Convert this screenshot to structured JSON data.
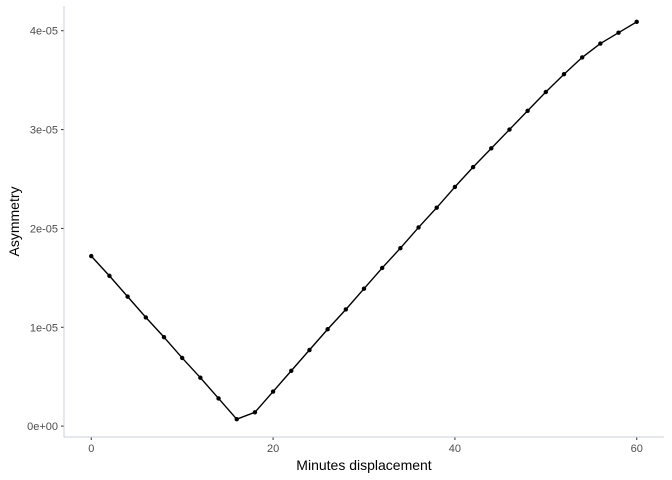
{
  "chart_data": {
    "type": "line",
    "title": "",
    "xlabel": "Minutes displacement",
    "ylabel": "Asymmetry",
    "xlim": [
      -3,
      63
    ],
    "ylim": [
      -1.1e-06,
      4.25e-05
    ],
    "x_ticks": [
      0,
      20,
      40,
      60
    ],
    "x_tick_labels": [
      "0",
      "20",
      "40",
      "60"
    ],
    "y_ticks": [
      0,
      1e-05,
      2e-05,
      3e-05,
      4e-05
    ],
    "y_tick_labels": [
      "0e+00",
      "1e-05",
      "2e-05",
      "3e-05",
      "4e-05"
    ],
    "grid": false,
    "series": [
      {
        "color": "#000000",
        "x": [
          0,
          2,
          4,
          6,
          8,
          10,
          12,
          14,
          16,
          18,
          20,
          22,
          24,
          26,
          28,
          30,
          32,
          34,
          36,
          38,
          40,
          42,
          44,
          46,
          48,
          50,
          52,
          54,
          56,
          58,
          60
        ],
        "y": [
          1.72e-05,
          1.52e-05,
          1.31e-05,
          1.1e-05,
          9e-06,
          6.9e-06,
          4.9e-06,
          2.8e-06,
          7e-07,
          1.4e-06,
          3.5e-06,
          5.6e-06,
          7.7e-06,
          9.8e-06,
          1.18e-05,
          1.39e-05,
          1.6e-05,
          1.8e-05,
          2.01e-05,
          2.21e-05,
          2.42e-05,
          2.62e-05,
          2.81e-05,
          3e-05,
          3.19e-05,
          3.38e-05,
          3.56e-05,
          3.73e-05,
          3.87e-05,
          3.98e-05,
          4.09e-05
        ]
      }
    ]
  },
  "style": {
    "axis_color": "#c8d0d8",
    "tick_color": "#333333",
    "line_color": "#000000"
  }
}
